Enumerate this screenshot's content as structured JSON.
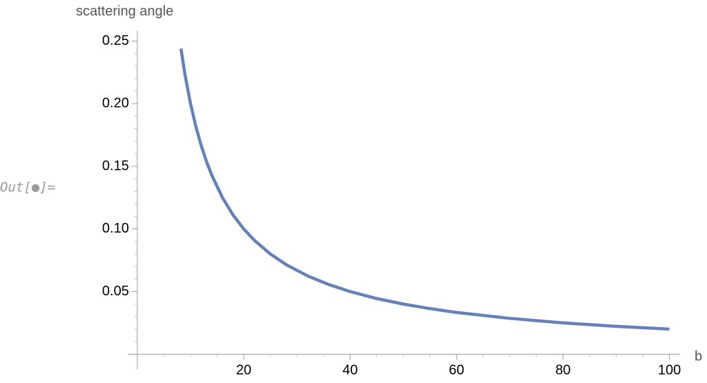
{
  "cell_label": "Out[●]=",
  "chart_data": {
    "type": "line",
    "y_label": "scattering angle",
    "x_label": "b",
    "x": [
      8.2,
      9,
      10,
      11,
      12,
      13,
      14,
      16,
      18,
      20,
      22,
      25,
      28,
      32,
      36,
      40,
      45,
      50,
      55,
      60,
      70,
      80,
      90,
      100
    ],
    "series": [
      {
        "color": "#6581b7",
        "values": [
          0.244,
          0.2222,
          0.2,
          0.1818,
          0.1667,
          0.1538,
          0.1429,
          0.125,
          0.1111,
          0.1,
          0.0909,
          0.08,
          0.0714,
          0.0625,
          0.0556,
          0.05,
          0.0444,
          0.04,
          0.0364,
          0.0333,
          0.0286,
          0.025,
          0.0222,
          0.02
        ]
      }
    ],
    "xlim": [
      -1.8,
      102
    ],
    "ylim": [
      -0.012,
      0.258
    ],
    "xticks": [
      20,
      40,
      60,
      80,
      100
    ],
    "yticks": [
      0.05,
      {
        "value": 0.1,
        "label": "0.10"
      },
      0.15,
      {
        "value": 0.2,
        "label": "0.20"
      },
      0.25
    ],
    "x_minor_ticks": [
      5,
      10,
      15,
      25,
      30,
      35,
      45,
      50,
      55,
      65,
      70,
      75,
      85,
      90,
      95
    ],
    "y_minor_ticks": [
      0.01,
      0.02,
      0.03,
      0.04,
      0.06,
      0.07,
      0.08,
      0.09,
      0.11,
      0.12,
      0.13,
      0.14,
      0.16,
      0.17,
      0.18,
      0.19,
      0.21,
      0.22,
      0.23,
      0.24
    ]
  }
}
